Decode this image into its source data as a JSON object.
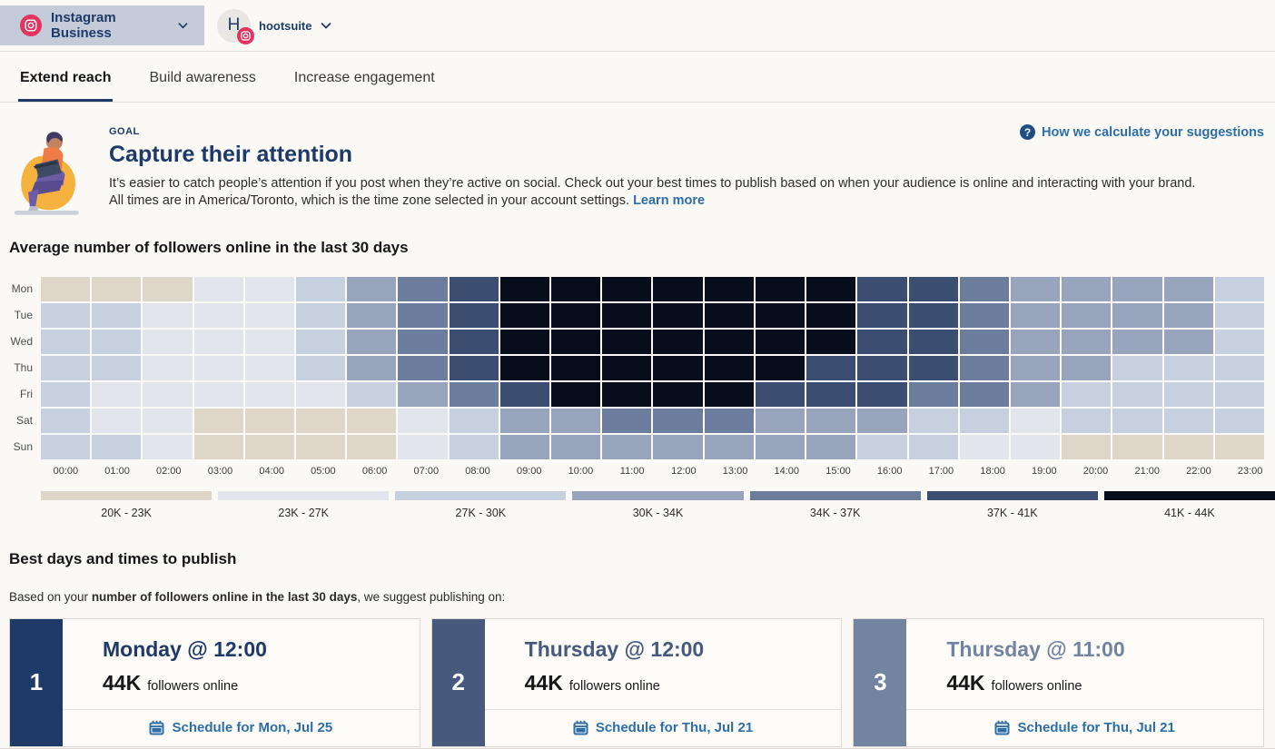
{
  "header": {
    "account_selector": {
      "label": "Instagram Business",
      "icon": "instagram-icon"
    },
    "profile": {
      "initial": "H",
      "name": "hootsuite",
      "badge_icon": "instagram-icon"
    }
  },
  "tabs": [
    {
      "label": "Extend reach",
      "active": true
    },
    {
      "label": "Build awareness",
      "active": false
    },
    {
      "label": "Increase engagement",
      "active": false
    }
  ],
  "goal": {
    "eyebrow": "GOAL",
    "title": "Capture their attention",
    "description": "It’s easier to catch people’s attention if you post when they’re active on social. Check out your best times to publish based on when your audience is online and interacting with your brand. All times are in America/Toronto, which is the time zone selected in your account settings. ",
    "learn_more_label": "Learn more",
    "help_link_label": "How we calculate your suggestions",
    "help_icon_glyph": "?"
  },
  "heatmap": {
    "title": "Average number of followers online in the last 30 days",
    "days": [
      "Mon",
      "Tue",
      "Wed",
      "Thu",
      "Fri",
      "Sat",
      "Sun"
    ],
    "hours": [
      "00:00",
      "01:00",
      "02:00",
      "03:00",
      "04:00",
      "05:00",
      "06:00",
      "07:00",
      "08:00",
      "09:00",
      "10:00",
      "11:00",
      "12:00",
      "13:00",
      "14:00",
      "15:00",
      "16:00",
      "17:00",
      "18:00",
      "19:00",
      "20:00",
      "21:00",
      "22:00",
      "23:00"
    ],
    "palette": [
      "#ded6c8",
      "#e2e5ec",
      "#c6d0de",
      "#97a4bc",
      "#6b7c9c",
      "#3b4e72",
      "#070d1b"
    ],
    "legend": [
      {
        "label": "20K - 23K",
        "color": "#ded6c8"
      },
      {
        "label": "23K - 27K",
        "color": "#e2e5ec"
      },
      {
        "label": "27K - 30K",
        "color": "#c6d0de"
      },
      {
        "label": "30K - 34K",
        "color": "#97a4bc"
      },
      {
        "label": "34K - 37K",
        "color": "#6b7c9c"
      },
      {
        "label": "37K - 41K",
        "color": "#3b4e72"
      },
      {
        "label": "41K - 44K",
        "color": "#070d1b"
      }
    ],
    "cells": [
      [
        0,
        0,
        0,
        1,
        1,
        2,
        3,
        4,
        5,
        6,
        6,
        6,
        6,
        6,
        6,
        6,
        5,
        5,
        4,
        3,
        3,
        3,
        3,
        2
      ],
      [
        2,
        2,
        1,
        1,
        1,
        2,
        3,
        4,
        5,
        6,
        6,
        6,
        6,
        6,
        6,
        6,
        5,
        5,
        4,
        3,
        3,
        3,
        3,
        2
      ],
      [
        2,
        2,
        1,
        1,
        1,
        2,
        3,
        4,
        5,
        6,
        6,
        6,
        6,
        6,
        6,
        6,
        5,
        5,
        4,
        3,
        3,
        3,
        3,
        2
      ],
      [
        2,
        2,
        1,
        1,
        1,
        2,
        3,
        4,
        5,
        6,
        6,
        6,
        6,
        6,
        6,
        5,
        5,
        5,
        4,
        3,
        3,
        2,
        2,
        2
      ],
      [
        2,
        1,
        1,
        1,
        1,
        1,
        2,
        3,
        4,
        5,
        6,
        6,
        6,
        6,
        5,
        5,
        5,
        4,
        4,
        3,
        2,
        2,
        2,
        2
      ],
      [
        2,
        1,
        1,
        0,
        0,
        0,
        0,
        1,
        2,
        3,
        3,
        4,
        4,
        4,
        3,
        3,
        3,
        2,
        2,
        1,
        2,
        2,
        2,
        2
      ],
      [
        2,
        2,
        1,
        0,
        0,
        0,
        0,
        1,
        2,
        3,
        3,
        3,
        3,
        3,
        3,
        3,
        2,
        2,
        1,
        1,
        0,
        0,
        0,
        0
      ]
    ]
  },
  "chart_data": {
    "type": "heatmap",
    "title": "Average number of followers online in the last 30 days",
    "x": [
      "00:00",
      "01:00",
      "02:00",
      "03:00",
      "04:00",
      "05:00",
      "06:00",
      "07:00",
      "08:00",
      "09:00",
      "10:00",
      "11:00",
      "12:00",
      "13:00",
      "14:00",
      "15:00",
      "16:00",
      "17:00",
      "18:00",
      "19:00",
      "20:00",
      "21:00",
      "22:00",
      "23:00"
    ],
    "y": [
      "Mon",
      "Tue",
      "Wed",
      "Thu",
      "Fri",
      "Sat",
      "Sun"
    ],
    "bucket_ranges": [
      "20K - 23K",
      "23K - 27K",
      "27K - 30K",
      "30K - 34K",
      "34K - 37K",
      "37K - 41K",
      "41K - 44K"
    ],
    "values_bucket_index": [
      [
        0,
        0,
        0,
        1,
        1,
        2,
        3,
        4,
        5,
        6,
        6,
        6,
        6,
        6,
        6,
        6,
        5,
        5,
        4,
        3,
        3,
        3,
        3,
        2
      ],
      [
        2,
        2,
        1,
        1,
        1,
        2,
        3,
        4,
        5,
        6,
        6,
        6,
        6,
        6,
        6,
        6,
        5,
        5,
        4,
        3,
        3,
        3,
        3,
        2
      ],
      [
        2,
        2,
        1,
        1,
        1,
        2,
        3,
        4,
        5,
        6,
        6,
        6,
        6,
        6,
        6,
        6,
        5,
        5,
        4,
        3,
        3,
        3,
        3,
        2
      ],
      [
        2,
        2,
        1,
        1,
        1,
        2,
        3,
        4,
        5,
        6,
        6,
        6,
        6,
        6,
        6,
        5,
        5,
        5,
        4,
        3,
        3,
        2,
        2,
        2
      ],
      [
        2,
        1,
        1,
        1,
        1,
        1,
        2,
        3,
        4,
        5,
        6,
        6,
        6,
        6,
        5,
        5,
        5,
        4,
        4,
        3,
        2,
        2,
        2,
        2
      ],
      [
        2,
        1,
        1,
        0,
        0,
        0,
        0,
        1,
        2,
        3,
        3,
        4,
        4,
        4,
        3,
        3,
        3,
        2,
        2,
        1,
        2,
        2,
        2,
        2
      ],
      [
        2,
        2,
        1,
        0,
        0,
        0,
        0,
        1,
        2,
        3,
        3,
        3,
        3,
        3,
        3,
        3,
        2,
        2,
        1,
        1,
        0,
        0,
        0,
        0
      ]
    ],
    "legend_position": "bottom",
    "grid": true
  },
  "suggestions": {
    "title": "Best days and times to publish",
    "intro_prefix": "Based on your ",
    "intro_bold": "number of followers online in the last 30 days",
    "intro_suffix": ", we suggest publishing on:",
    "cards": [
      {
        "rank": "1",
        "accent": "#1e3a68",
        "title": "Monday @ 12:00",
        "metric": "44K",
        "metric_label": "followers online",
        "cta": "Schedule for Mon, Jul 25"
      },
      {
        "rank": "2",
        "accent": "#475a7e",
        "title": "Thursday @ 12:00",
        "metric": "44K",
        "metric_label": "followers online",
        "cta": "Schedule for Thu, Jul 21"
      },
      {
        "rank": "3",
        "accent": "#72849f",
        "title": "Thursday @ 11:00",
        "metric": "44K",
        "metric_label": "followers online",
        "cta": "Schedule for Thu, Jul 21"
      }
    ]
  }
}
